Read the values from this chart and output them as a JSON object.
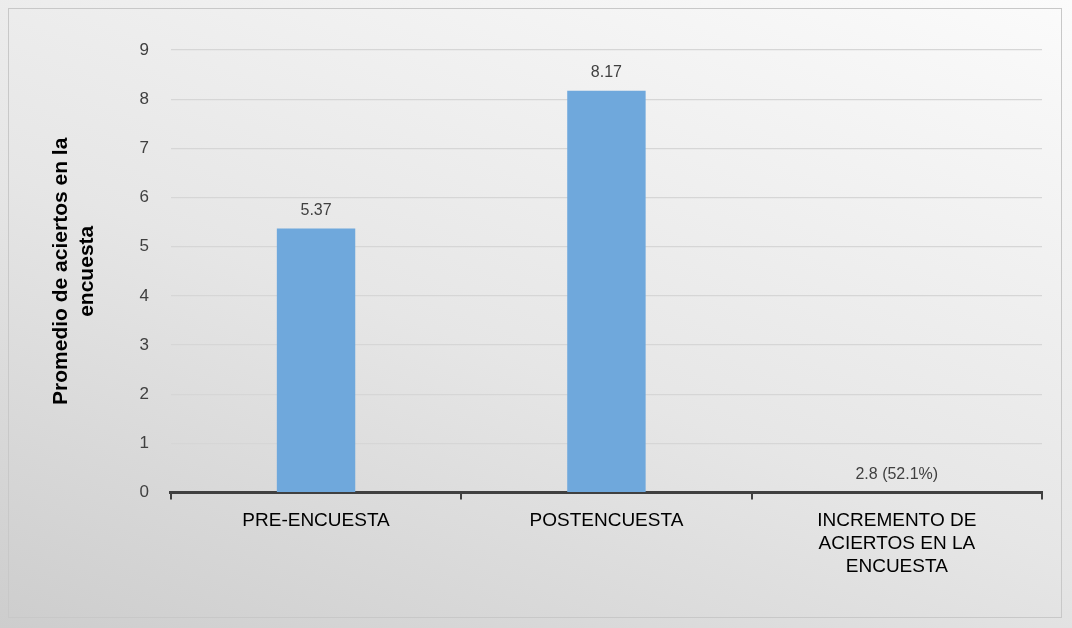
{
  "chart_data": {
    "type": "bar",
    "ylabel": "Promedio de aciertos en la encuesta",
    "categories": [
      "PRE-ENCUESTA",
      "POSTENCUESTA",
      "INCREMENTO DE ACIERTOS EN LA ENCUESTA"
    ],
    "values": [
      5.37,
      8.17,
      0
    ],
    "color": "#6fa8dc",
    "value_labels": [
      "5.37",
      "8.17",
      null
    ],
    "annotations": [
      {
        "text": "2.8 (52.1%)",
        "x": "INCREMENTO DE ACIERTOS EN LA ENCUESTA",
        "y": 0
      }
    ],
    "ylim": [
      0,
      9
    ],
    "yticks": [
      0,
      1,
      2,
      3,
      4,
      5,
      6,
      7,
      8,
      9
    ],
    "grid": "y"
  }
}
